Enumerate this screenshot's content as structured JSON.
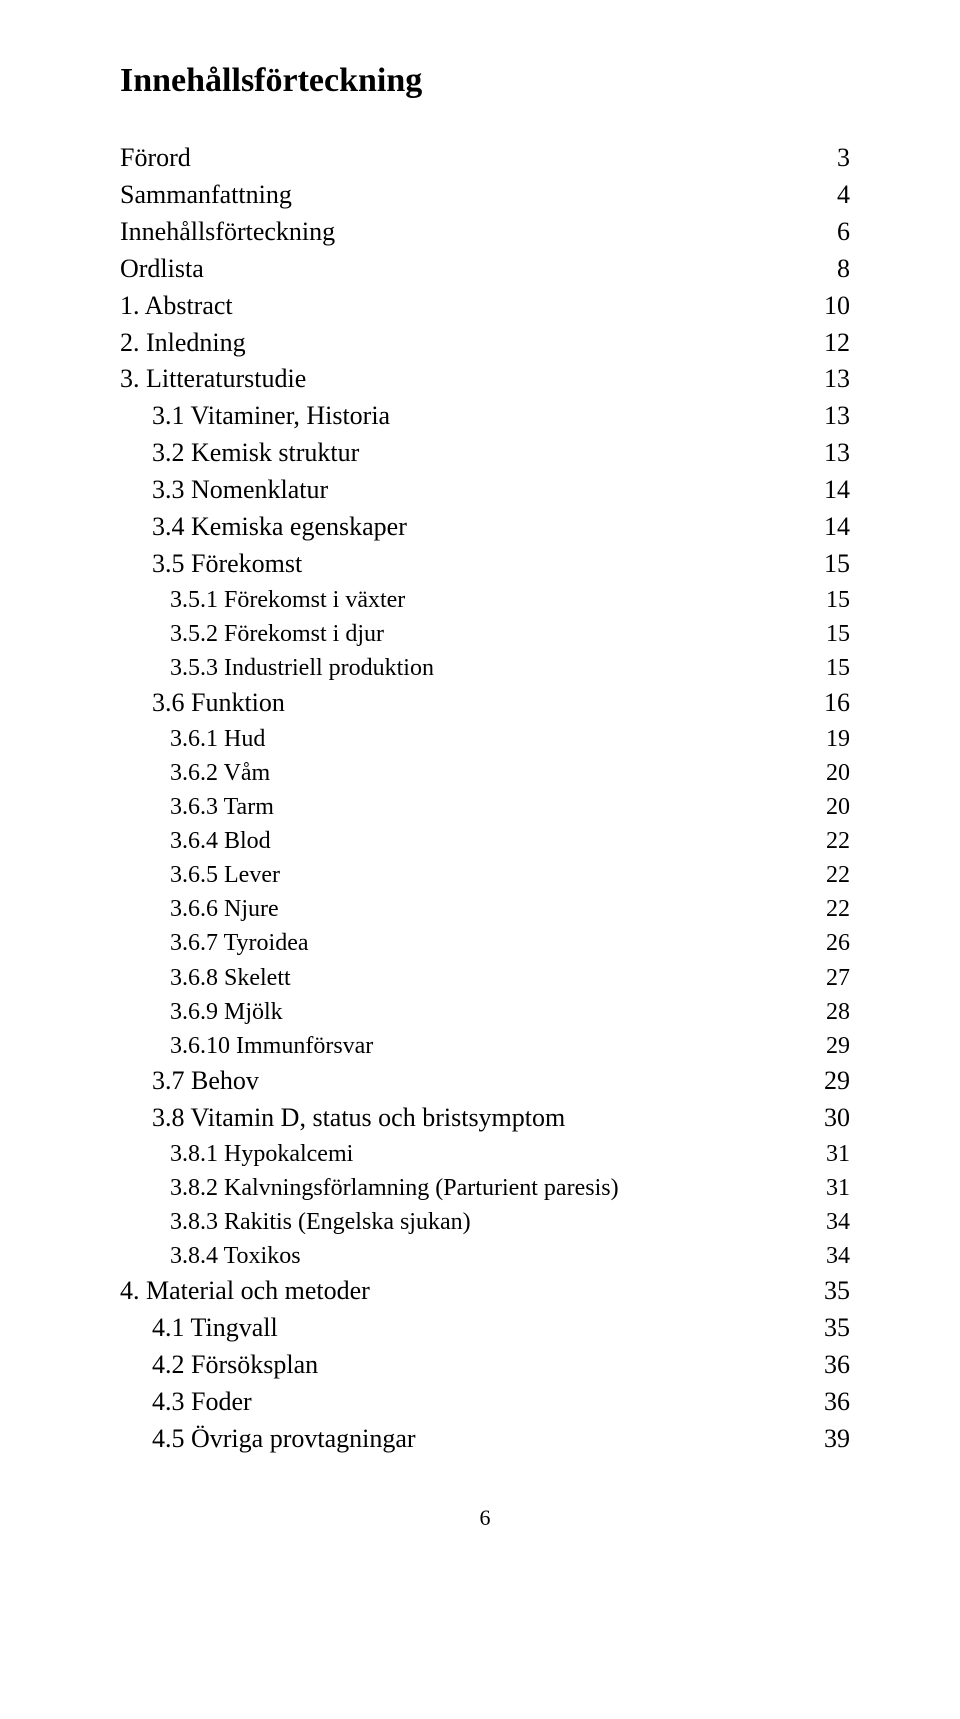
{
  "title": "Innehållsförteckning",
  "footer_page_number": "6",
  "toc": [
    {
      "label": "Förord",
      "page": "3",
      "level": 0
    },
    {
      "label": "Sammanfattning",
      "page": "4",
      "level": 0
    },
    {
      "label": "Innehållsförteckning",
      "page": "6",
      "level": 0
    },
    {
      "label": "Ordlista",
      "page": "8",
      "level": 0
    },
    {
      "label": "1. Abstract",
      "page": "10",
      "level": 0
    },
    {
      "label": "2. Inledning",
      "page": "12",
      "level": 0
    },
    {
      "label": "3. Litteraturstudie",
      "page": "13",
      "level": 0
    },
    {
      "label": "3.1 Vitaminer, Historia",
      "page": "13",
      "level": 1
    },
    {
      "label": "3.2 Kemisk struktur",
      "page": "13",
      "level": 1
    },
    {
      "label": "3.3 Nomenklatur",
      "page": "14",
      "level": 1
    },
    {
      "label": "3.4 Kemiska egenskaper",
      "page": "14",
      "level": 1
    },
    {
      "label": "3.5 Förekomst",
      "page": "15",
      "level": 1
    },
    {
      "label": "3.5.1 Förekomst i växter",
      "page": "15",
      "level": 2
    },
    {
      "label": "3.5.2 Förekomst i djur",
      "page": "15",
      "level": 2
    },
    {
      "label": "3.5.3 Industriell produktion",
      "page": "15",
      "level": 2
    },
    {
      "label": "3.6 Funktion",
      "page": "16",
      "level": 1
    },
    {
      "label": "3.6.1 Hud",
      "page": "19",
      "level": 2
    },
    {
      "label": "3.6.2 Våm",
      "page": "20",
      "level": 2
    },
    {
      "label": "3.6.3 Tarm",
      "page": "20",
      "level": 2
    },
    {
      "label": "3.6.4 Blod",
      "page": "22",
      "level": 2
    },
    {
      "label": "3.6.5 Lever",
      "page": "22",
      "level": 2
    },
    {
      "label": "3.6.6 Njure",
      "page": "22",
      "level": 2
    },
    {
      "label": "3.6.7 Tyroidea",
      "page": "26",
      "level": 2
    },
    {
      "label": "3.6.8 Skelett",
      "page": "27",
      "level": 2
    },
    {
      "label": "3.6.9 Mjölk",
      "page": "28",
      "level": 2
    },
    {
      "label": "3.6.10 Immunförsvar",
      "page": "29",
      "level": 2
    },
    {
      "label": "3.7 Behov",
      "page": "29",
      "level": 1
    },
    {
      "label": "3.8 Vitamin D, status och bristsymptom",
      "page": "30",
      "level": 1
    },
    {
      "label": "3.8.1 Hypokalcemi",
      "page": "31",
      "level": 2
    },
    {
      "label": "3.8.2 Kalvningsförlamning (Parturient paresis)",
      "page": "31",
      "level": 2
    },
    {
      "label": "3.8.3 Rakitis (Engelska sjukan)",
      "page": "34",
      "level": 2
    },
    {
      "label": "3.8.4 Toxikos",
      "page": "34",
      "level": 2
    },
    {
      "label": "4. Material och metoder",
      "page": "35",
      "level": 0
    },
    {
      "label": "4.1 Tingvall",
      "page": "35",
      "level": 1
    },
    {
      "label": "4.2 Försöksplan",
      "page": "36",
      "level": 1
    },
    {
      "label": "4.3 Foder",
      "page": "36",
      "level": 1
    },
    {
      "label": "4.5 Övriga provtagningar",
      "page": "39",
      "level": 1
    }
  ]
}
